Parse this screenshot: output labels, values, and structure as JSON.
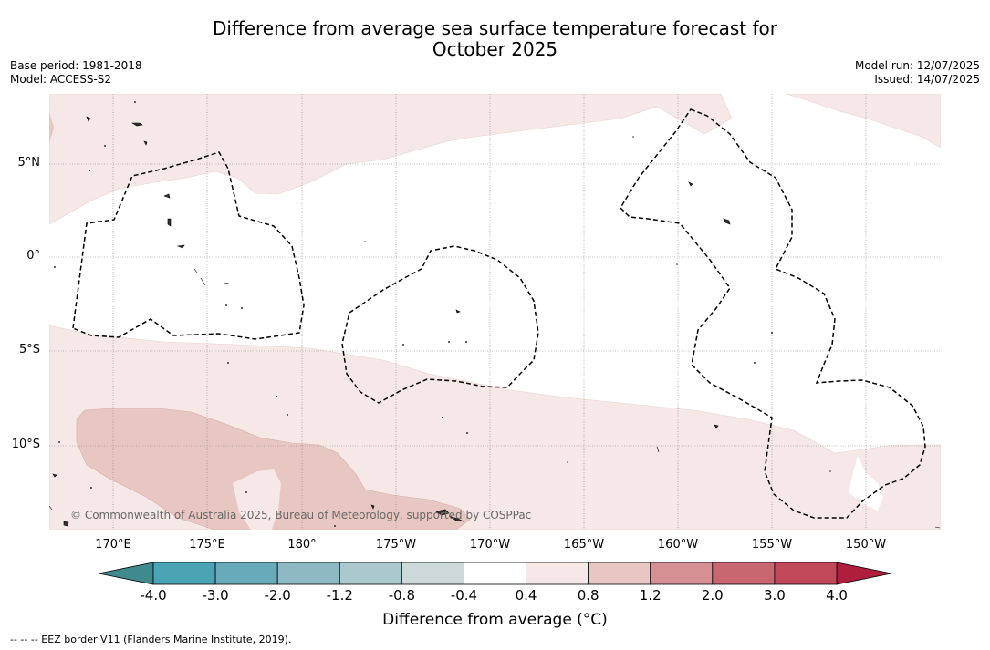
{
  "header": {
    "title_line1": "Difference from average sea surface temperature forecast for",
    "title_line2": "October 2025",
    "base_period": "Base period: 1981-2018",
    "model": "Model: ACCESS-S2",
    "model_run": "Model run: 12/07/2025",
    "issued": "Issued: 14/07/2025"
  },
  "map": {
    "region": "Tropical Pacific",
    "lat_labels": [
      "5°N",
      "0°",
      "5°S",
      "10°S"
    ],
    "lon_labels": [
      "170°E",
      "175°E",
      "180°",
      "175°W",
      "170°W",
      "165°W",
      "160°W",
      "155°W",
      "150°W"
    ],
    "copyright": "© Commonwealth of Australia 2025, Bureau of Meteorology, supported by COSPPac",
    "colors": {
      "anomaly_0_4_to_0_8": "#f5e8e6",
      "anomaly_0_8_to_1_2": "#e8c6c1",
      "grid": "#808080",
      "eez_border": "#000000",
      "land": "#444444"
    }
  },
  "colorbar": {
    "label": "Difference from average (°C)",
    "tick_labels": [
      "-4.0",
      "-3.0",
      "-2.0",
      "-1.2",
      "-0.8",
      "-0.4",
      "0.4",
      "0.8",
      "1.2",
      "2.0",
      "3.0",
      "4.0"
    ],
    "bin_colors": [
      "#4ba4b6",
      "#68aab9",
      "#8cb9c3",
      "#abc9cc",
      "#cdd8d8",
      "#ffffff",
      "#f5e8e6",
      "#e8c6c1",
      "#d58f95",
      "#c96770",
      "#c04858"
    ],
    "under_color": "#3f8a8e",
    "over_color": "#b01e3e"
  },
  "footnote": "-- -- -- EEZ border V11 (Flanders Marine Institute, 2019)."
}
